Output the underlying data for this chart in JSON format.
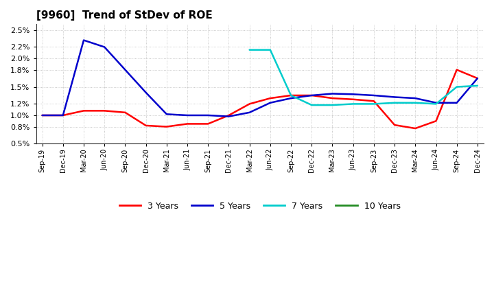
{
  "title": "[9960]  Trend of StDev of ROE",
  "ylim": [
    0.005,
    0.026
  ],
  "yticks": [
    0.005,
    0.008,
    0.01,
    0.012,
    0.015,
    0.018,
    0.02,
    0.022,
    0.025
  ],
  "ytick_labels": [
    "0.5%",
    "0.8%",
    "1.0%",
    "1.2%",
    "1.5%",
    "1.8%",
    "2.0%",
    "2.2%",
    "2.5%"
  ],
  "background_color": "#ffffff",
  "grid_color": "#aaaaaa",
  "xtick_labels": [
    "Sep-19",
    "Dec-19",
    "Mar-20",
    "Jun-20",
    "Sep-20",
    "Dec-20",
    "Mar-21",
    "Jun-21",
    "Sep-21",
    "Dec-21",
    "Mar-22",
    "Jun-22",
    "Sep-22",
    "Dec-22",
    "Mar-23",
    "Jun-23",
    "Sep-23",
    "Dec-23",
    "Mar-24",
    "Jun-24",
    "Sep-24",
    "Dec-24"
  ],
  "series": {
    "3 Years": {
      "color": "#ff0000",
      "x": [
        0,
        1,
        2,
        3,
        4,
        5,
        6,
        7,
        8,
        9,
        10,
        11,
        12,
        13,
        14,
        15,
        16,
        17,
        18,
        19,
        20,
        21
      ],
      "y": [
        0.01,
        0.01,
        0.0108,
        0.0108,
        0.0105,
        0.0082,
        0.008,
        0.0085,
        0.0085,
        0.01,
        0.012,
        0.013,
        0.0135,
        0.0135,
        0.013,
        0.0128,
        0.0125,
        0.0083,
        0.0077,
        0.009,
        0.018,
        0.0165
      ]
    },
    "5 Years": {
      "color": "#0000cc",
      "x": [
        0,
        1,
        2,
        3,
        4,
        5,
        6,
        7,
        8,
        9,
        10,
        11,
        12,
        13,
        14,
        15,
        16,
        17,
        18,
        19,
        20,
        21
      ],
      "y": [
        0.01,
        0.01,
        0.0232,
        0.022,
        0.018,
        0.014,
        0.0102,
        0.01,
        0.01,
        0.0098,
        0.0105,
        0.0122,
        0.013,
        0.0135,
        0.0138,
        0.0137,
        0.0135,
        0.0132,
        0.013,
        0.0122,
        0.0122,
        0.0165
      ]
    },
    "7 Years": {
      "color": "#00cccc",
      "x": [
        10,
        11,
        12,
        13,
        14,
        15,
        16,
        17,
        18,
        19,
        20,
        21
      ],
      "y": [
        0.0215,
        0.0215,
        0.0135,
        0.0118,
        0.0118,
        0.012,
        0.012,
        0.0122,
        0.0122,
        0.012,
        0.015,
        0.0152
      ]
    },
    "10 Years": {
      "color": "#228b22",
      "x": [],
      "y": []
    }
  },
  "legend_labels": [
    "3 Years",
    "5 Years",
    "7 Years",
    "10 Years"
  ],
  "legend_colors": [
    "#ff0000",
    "#0000cc",
    "#00cccc",
    "#228b22"
  ]
}
